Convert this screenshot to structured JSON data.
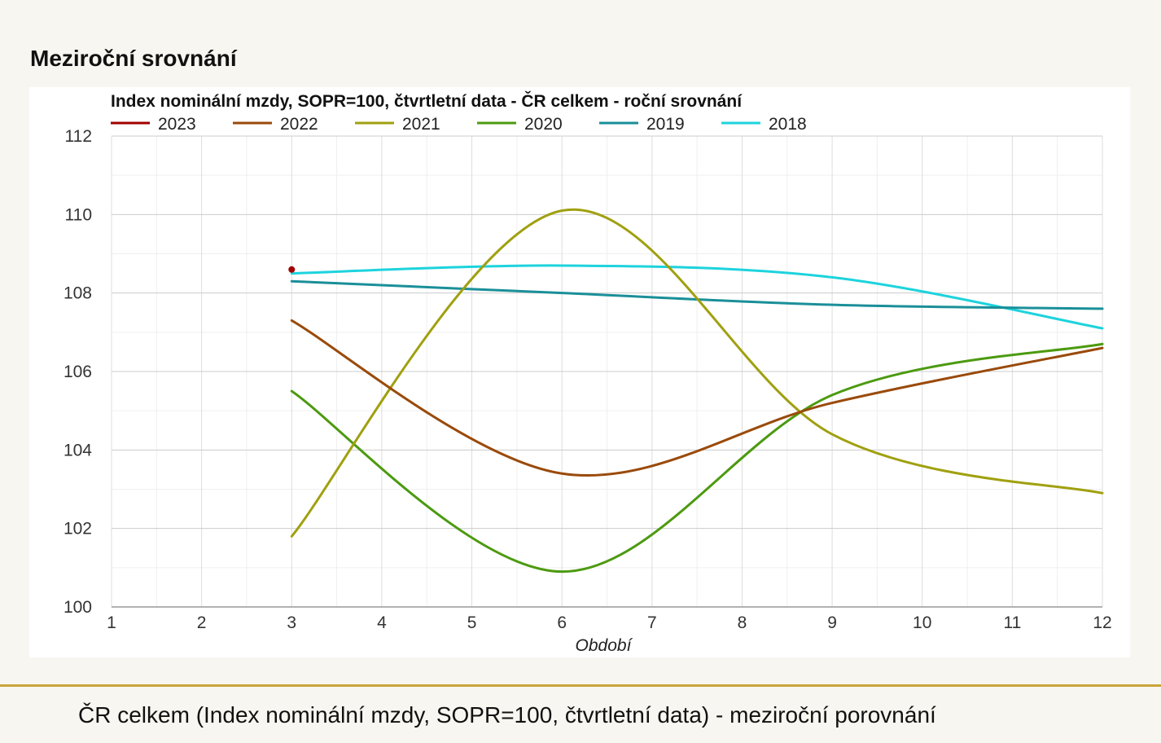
{
  "page": {
    "title": "Meziroční srovnání",
    "footer_caption": "ČR celkem (Index nominální mzdy, SOPR=100, čtvrtletní data) - meziroční porovnání"
  },
  "chart_data": {
    "type": "line",
    "title": "Index nominální mzdy, SOPR=100, čtvrtletní data - ČR celkem - roční srovnání",
    "xlabel": "Období",
    "ylabel": "",
    "xlim": [
      1,
      12
    ],
    "ylim": [
      100,
      112
    ],
    "x_ticks": [
      1,
      2,
      3,
      4,
      5,
      6,
      7,
      8,
      9,
      10,
      11,
      12
    ],
    "y_ticks": [
      100,
      102,
      104,
      106,
      108,
      110,
      112
    ],
    "grid": true,
    "legend_position": "top",
    "smooth": true,
    "series": [
      {
        "name": "2023",
        "color": "#a00000",
        "points": [
          [
            3,
            108.6
          ]
        ]
      },
      {
        "name": "2022",
        "color": "#9a4a0a",
        "points": [
          [
            3,
            107.3
          ],
          [
            6,
            103.4
          ],
          [
            9,
            105.2
          ],
          [
            12,
            106.6
          ]
        ]
      },
      {
        "name": "2021",
        "color": "#a0a010",
        "points": [
          [
            3,
            101.8
          ],
          [
            6,
            110.1
          ],
          [
            9,
            104.4
          ],
          [
            12,
            102.9
          ]
        ]
      },
      {
        "name": "2020",
        "color": "#4c9a10",
        "points": [
          [
            3,
            105.5
          ],
          [
            6,
            100.9
          ],
          [
            9,
            105.4
          ],
          [
            12,
            106.7
          ]
        ]
      },
      {
        "name": "2019",
        "color": "#1a8f99",
        "points": [
          [
            3,
            108.3
          ],
          [
            6,
            108.0
          ],
          [
            9,
            107.7
          ],
          [
            12,
            107.6
          ]
        ]
      },
      {
        "name": "2018",
        "color": "#1dd3dd",
        "points": [
          [
            3,
            108.5
          ],
          [
            6,
            108.7
          ],
          [
            9,
            108.4
          ],
          [
            12,
            107.1
          ]
        ]
      }
    ]
  }
}
